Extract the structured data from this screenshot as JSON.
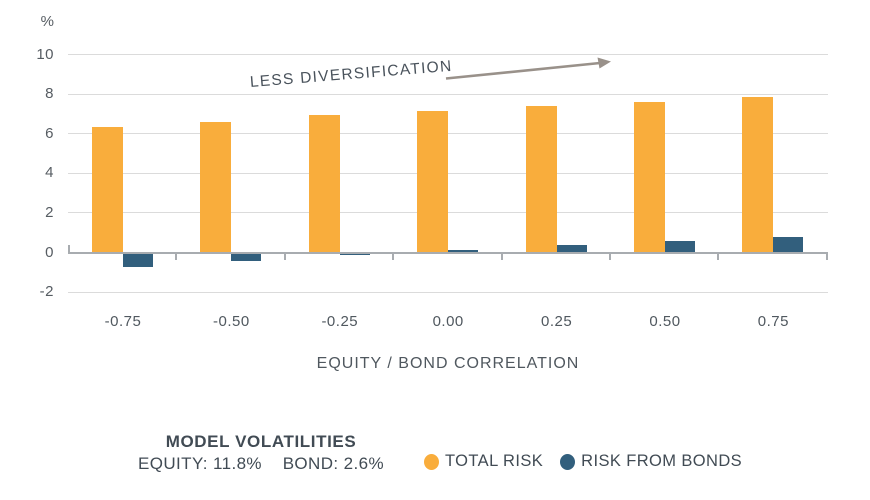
{
  "chart_data": {
    "type": "bar",
    "title": "",
    "unit_label": "%",
    "xlabel": "EQUITY / BOND CORRELATION",
    "categories": [
      "-0.75",
      "-0.50",
      "-0.25",
      "0.00",
      "0.25",
      "0.50",
      "0.75"
    ],
    "series": [
      {
        "name": "TOTAL RISK",
        "color": "#f9ad3c",
        "values": [
          6.35,
          6.6,
          6.95,
          7.15,
          7.4,
          7.6,
          7.85
        ]
      },
      {
        "name": "RISK FROM BONDS",
        "color": "#325f7d",
        "values": [
          -0.7,
          -0.4,
          -0.08,
          0.15,
          0.4,
          0.6,
          0.8
        ]
      }
    ],
    "ylim": [
      -2,
      10
    ],
    "yticks": [
      10,
      8,
      6,
      4,
      2,
      0,
      -2
    ],
    "grid": true,
    "annotation": "LESS DIVERSIFICATION",
    "legend_position": "bottom"
  },
  "footer": {
    "volatilities_title": "MODEL VOLATILITIES",
    "equity": "EQUITY: 11.8%",
    "bond": "BOND: 2.6%",
    "legend": [
      {
        "label": "TOTAL RISK",
        "color": "#f9ad3c"
      },
      {
        "label": "RISK FROM BONDS",
        "color": "#325f7d"
      }
    ]
  },
  "colors": {
    "grid": "#dbdbdb",
    "axis": "#a8acb0",
    "arrow": "#99918a",
    "text": "#50585f"
  }
}
